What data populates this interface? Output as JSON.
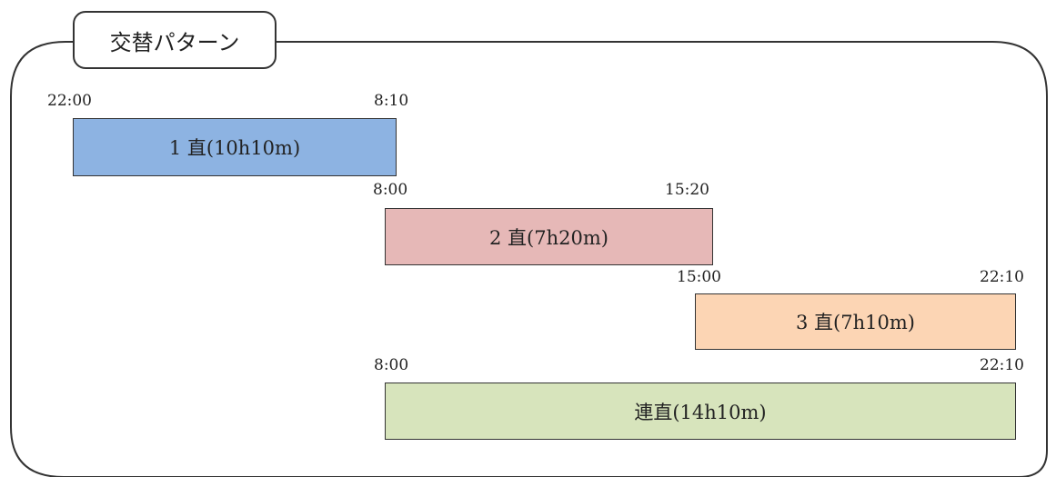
{
  "title": "交替パターン",
  "colors": {
    "shift1": "#8db3e2",
    "shift2": "#e6b8b7",
    "shift3": "#fcd5b4",
    "continuous": "#d7e4bc",
    "border": "#333333"
  },
  "shifts": [
    {
      "label": "1 直(10h10m)",
      "start": "22:00",
      "end": "8:10",
      "color_key": "shift1"
    },
    {
      "label": "2 直(7h20m)",
      "start": "8:00",
      "end": "15:20",
      "color_key": "shift2"
    },
    {
      "label": "3 直(7h10m)",
      "start": "15:00",
      "end": "22:10",
      "color_key": "shift3"
    },
    {
      "label": "連直(14h10m)",
      "start": "8:00",
      "end": "22:10",
      "color_key": "continuous"
    }
  ]
}
